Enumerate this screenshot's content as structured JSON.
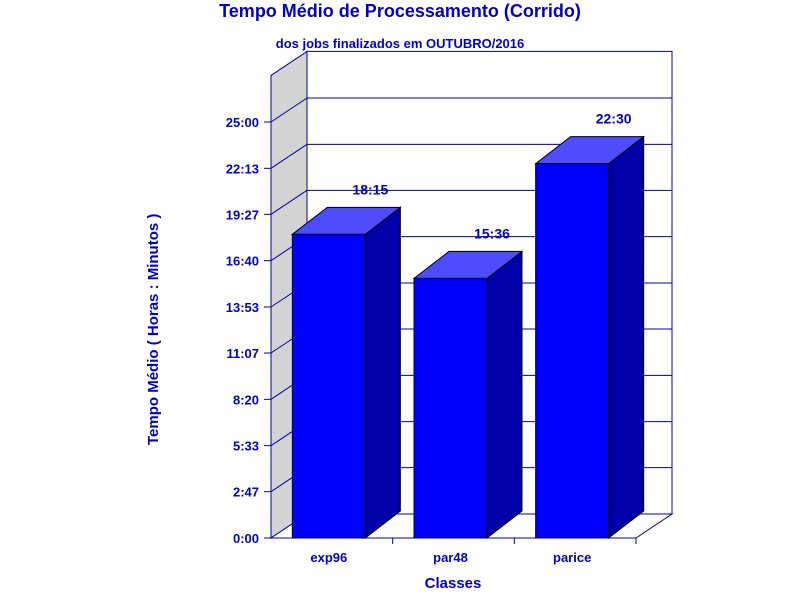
{
  "chart_data": {
    "type": "bar",
    "title": "Tempo Médio de Processamento (Corrido)",
    "subtitle": "dos jobs finalizados em OUTUBRO/2016",
    "xlabel": "Classes",
    "ylabel": "Tempo Médio ( Horas : Minutos )",
    "categories": [
      "exp96",
      "par48",
      "parice"
    ],
    "values": [
      18.25,
      15.6,
      22.5
    ],
    "value_labels": [
      "18:15",
      "15:36",
      "22:30"
    ],
    "yticks": [
      0,
      2.7833,
      5.55,
      8.3333,
      11.1167,
      13.8833,
      16.6667,
      19.45,
      22.2167,
      25
    ],
    "ytick_labels": [
      "0:00",
      "2:47",
      "5:33",
      "8:20",
      "11:07",
      "13:53",
      "16:40",
      "19:27",
      "22:13",
      "25:00"
    ],
    "ylim": [
      0,
      27.8
    ],
    "grid": true,
    "legend": "none",
    "colors": {
      "bar_front": "#0000ff",
      "bar_top": "#4d4dff",
      "bar_side": "#0000aa",
      "text": "#0000cc",
      "axis": "#0000aa",
      "wall": "#d3d3d3"
    }
  }
}
